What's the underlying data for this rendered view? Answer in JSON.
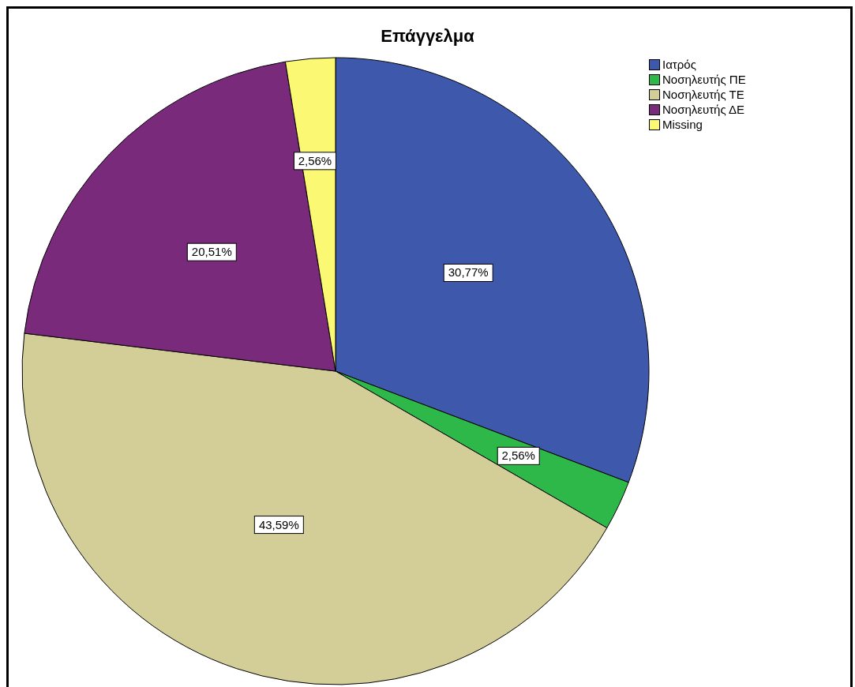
{
  "chart_data": {
    "type": "pie",
    "title": "Επάγγελμα",
    "categories": [
      "Ιατρός",
      "Νοσηλευτής ΠΕ",
      "Νοσηλευτής ΤΕ",
      "Νοσηλευτής ΔΕ",
      "Missing"
    ],
    "values": [
      30.77,
      2.56,
      43.59,
      20.51,
      2.56
    ],
    "value_labels": [
      "30,77%",
      "2,56%",
      "43,59%",
      "20,51%",
      "2,56%"
    ],
    "colors": [
      "#3e58ac",
      "#2fb84a",
      "#d3ce97",
      "#7a2a7a",
      "#fbf873"
    ],
    "legend": "top right"
  }
}
